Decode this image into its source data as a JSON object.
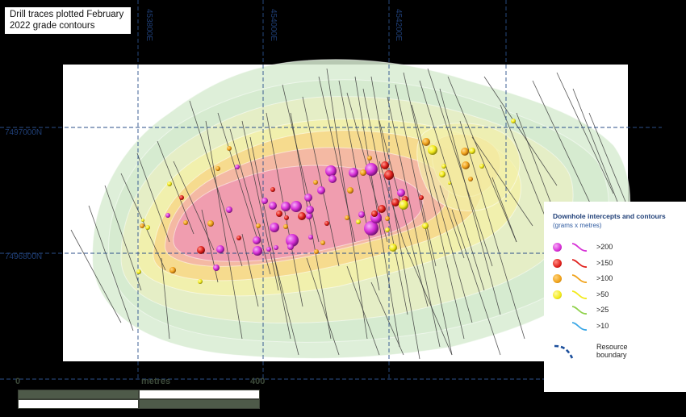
{
  "title": "Drill traces plotted February 2022 grade contours",
  "grid": {
    "eastings": [
      "453800E",
      "454000E",
      "454200E"
    ],
    "northings": [
      "7497000N",
      "7496800N"
    ]
  },
  "legend": {
    "title": "Downhole intercepts and contours",
    "subtitle": "(grams x metres)",
    "items": [
      {
        "label": ">200",
        "color": "#d62fd6",
        "has_dot": true
      },
      {
        "label": ">150",
        "color": "#e0201c",
        "has_dot": true
      },
      {
        "label": ">100",
        "color": "#f0a21a",
        "has_dot": true
      },
      {
        "label": ">50",
        "color": "#f2ea19",
        "has_dot": true
      },
      {
        "label": ">25",
        "color": "#8fd14a",
        "has_dot": false
      },
      {
        "label": ">10",
        "color": "#3aa7e6",
        "has_dot": false
      }
    ],
    "boundary": {
      "label": "Resource boundary",
      "color": "#1c4f9c"
    }
  },
  "scale": {
    "start": "0",
    "unit": "metres",
    "end": "400"
  },
  "colors": {
    "background": "#000000",
    "map_bg": "#ffffff",
    "grid_line": "#2b4f8a",
    "contour_10": "#d8ecd2",
    "contour_25": "#e7eec4",
    "contour_50": "#f2efaa",
    "contour_100": "#f5d98c",
    "contour_150": "#f3b7a4",
    "contour_200": "#ef9ab0",
    "drill_trace": "#3a3a3a"
  }
}
